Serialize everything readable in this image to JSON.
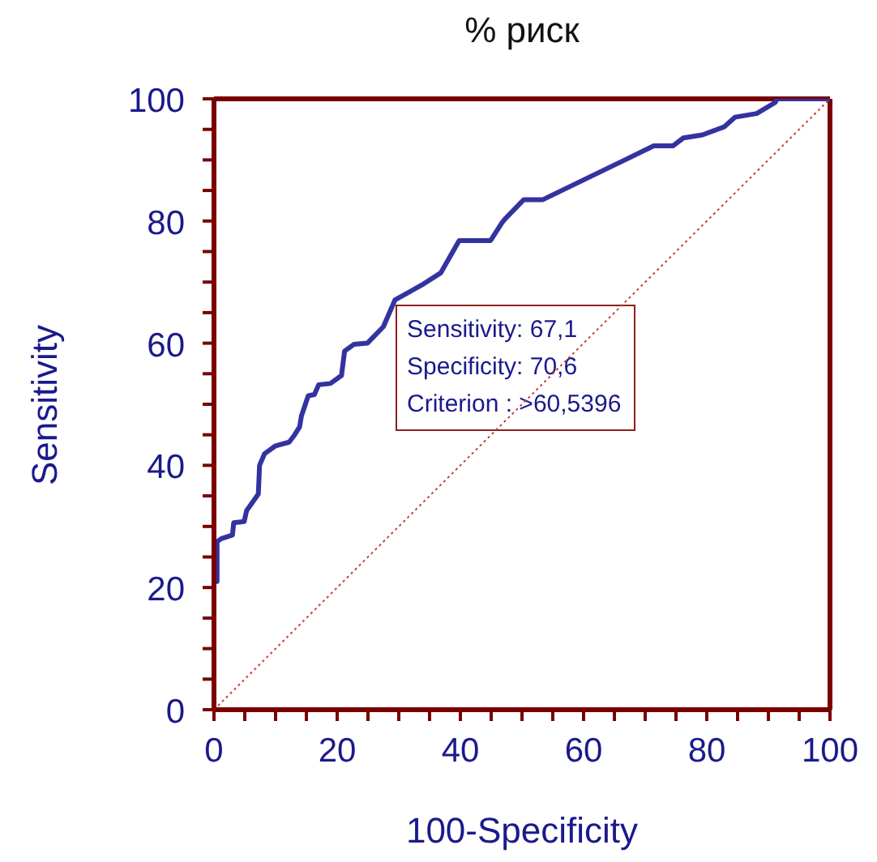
{
  "chart_data": {
    "type": "line",
    "title": "% риск",
    "xlabel": "100-Specificity",
    "ylabel": "Sensitivity",
    "series": [
      {
        "color": "#3333a0",
        "line_style": "solid",
        "x": [
          0,
          0,
          0.5,
          0.5,
          1.2,
          3.0,
          3.2,
          4.9,
          5.3,
          7.2,
          7.4,
          8.2,
          10,
          12.2,
          13.1,
          13.9,
          14.2,
          15.3,
          16.3,
          17,
          18.9,
          20.7,
          21.2,
          22.7,
          24.9,
          27.5,
          29.4,
          33.7,
          36.8,
          39.8,
          44.9,
          46.8,
          47.3,
          50.3,
          53.4,
          71.4,
          74.5,
          76.2,
          79.3,
          82.8,
          84.6,
          88.1,
          91.1,
          91.4,
          100
        ],
        "values": [
          0,
          21,
          21,
          27.5,
          28,
          28.6,
          30.6,
          30.8,
          32.6,
          35.3,
          40,
          41.9,
          43.2,
          43.8,
          45,
          46.3,
          48.1,
          51.4,
          51.6,
          53.2,
          53.4,
          54.7,
          58.7,
          59.8,
          60,
          62.7,
          67.1,
          69.5,
          71.5,
          76.8,
          76.8,
          79.8,
          80.4,
          83.5,
          83.5,
          92.3,
          92.3,
          93.6,
          94.1,
          95.4,
          97,
          97.6,
          99.4,
          100,
          100
        ]
      },
      {
        "color": "#c04040",
        "line_style": "dotted",
        "x": [
          0,
          100
        ],
        "values": [
          0,
          100
        ]
      }
    ],
    "annotations": [
      "Sensitivity: 67,1",
      "Specificity: 70,6",
      "Criterion : >60,5396"
    ],
    "xlim": [
      0,
      100
    ],
    "ylim": [
      0,
      100
    ],
    "xticks": [
      0,
      {
        "value": 5,
        "label": null
      },
      {
        "value": 10,
        "label": null
      },
      {
        "value": 15,
        "label": null
      },
      20,
      {
        "value": 25,
        "label": null
      },
      {
        "value": 30,
        "label": null
      },
      {
        "value": 35,
        "label": null
      },
      40,
      {
        "value": 45,
        "label": null
      },
      {
        "value": 50,
        "label": null
      },
      {
        "value": 55,
        "label": null
      },
      60,
      {
        "value": 65,
        "label": null
      },
      {
        "value": 70,
        "label": null
      },
      {
        "value": 75,
        "label": null
      },
      80,
      {
        "value": 85,
        "label": null
      },
      {
        "value": 90,
        "label": null
      },
      {
        "value": 95,
        "label": null
      },
      100
    ],
    "yticks": [
      0,
      {
        "value": 5,
        "label": null
      },
      {
        "value": 10,
        "label": null
      },
      {
        "value": 15,
        "label": null
      },
      20,
      {
        "value": 25,
        "label": null
      },
      {
        "value": 30,
        "label": null
      },
      {
        "value": 35,
        "label": null
      },
      40,
      {
        "value": 45,
        "label": null
      },
      {
        "value": 50,
        "label": null
      },
      {
        "value": 55,
        "label": null
      },
      60,
      {
        "value": 65,
        "label": null
      },
      {
        "value": 70,
        "label": null
      },
      {
        "value": 75,
        "label": null
      },
      80,
      {
        "value": 85,
        "label": null
      },
      {
        "value": 90,
        "label": null
      },
      {
        "value": 95,
        "label": null
      },
      100
    ],
    "legend": false,
    "marker": "none"
  }
}
